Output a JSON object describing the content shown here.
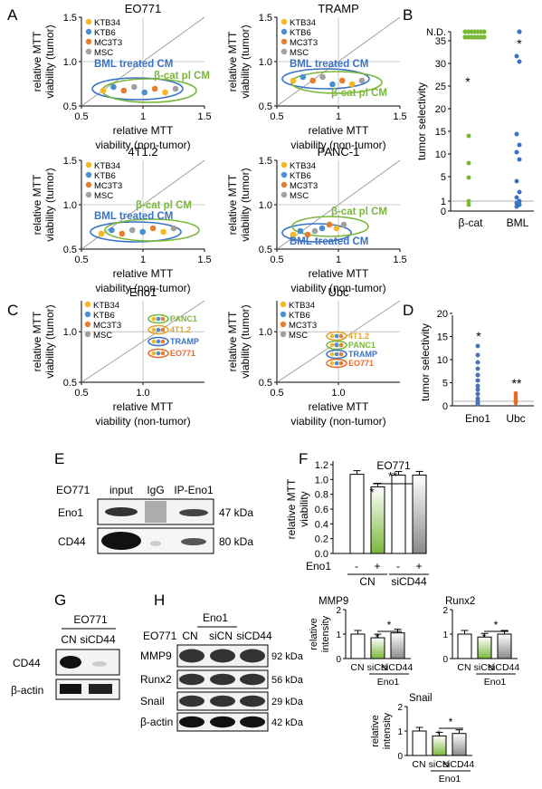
{
  "legend_abc": [
    "KTB34",
    "KTB6",
    "MC3T3",
    "MSC"
  ],
  "legend_colors": {
    "KTB34": "#f5b820",
    "KTB6": "#4a8fd0",
    "MC3T3": "#e57e2f",
    "MSC": "#a0a0a0"
  },
  "colors": {
    "blue": "#3a73c4",
    "green": "#7ab83a",
    "orange": "#e46b2a",
    "gold": "#e0a52a",
    "gray": "#888888"
  },
  "panel_letters": [
    "A",
    "B",
    "C",
    "D",
    "E",
    "F",
    "G",
    "H"
  ],
  "axis_common": {
    "ylabel": [
      "relative MTT",
      "viability (tumor)"
    ],
    "xlabel": [
      "relative MTT",
      "viability (non-tumor)"
    ]
  },
  "panel_a": {
    "cm_blue": "BML treated CM",
    "cm_green": "β-cat pl CM",
    "plots": [
      {
        "title": "EO771",
        "xticks": [
          "0.5",
          "1",
          "1.5"
        ],
        "yticks": [
          "0.5",
          "1.0",
          "1.5"
        ]
      },
      {
        "title": "TRAMP",
        "xticks": [
          "0.5",
          "1",
          "1.5"
        ],
        "yticks": [
          "0.5",
          "1.0",
          "1.5"
        ]
      },
      {
        "title": "4T1.2",
        "xticks": [
          "0.5",
          "1",
          "1.5"
        ],
        "yticks": [
          "0.5",
          "1.0",
          "1.5"
        ]
      },
      {
        "title": "PANC-1",
        "xticks": [
          "0.5",
          "1",
          "1.5"
        ],
        "yticks": [
          "0.5",
          "1.0",
          "1.5"
        ]
      }
    ]
  },
  "panel_b": {
    "ylabel": "tumor selectivity",
    "yticks": [
      "N.D.",
      "35",
      "30",
      "25",
      "20",
      "15",
      "10",
      "5",
      "1",
      "0"
    ],
    "categories": [
      "β-cat",
      "BML"
    ],
    "star": "*"
  },
  "panel_c": {
    "plots": [
      {
        "title": "Eno1",
        "xticks": [
          "0.5",
          "1.0"
        ],
        "yticks": [
          "0.5",
          "1.0"
        ],
        "labels": [
          "PANC1",
          "4T1.2",
          "TRAMP",
          "EO771"
        ]
      },
      {
        "title": "Ubc",
        "xticks": [
          "0.5",
          "1.0"
        ],
        "yticks": [
          "0.5",
          "1.0"
        ],
        "labels": [
          "4T1.2",
          "PANC1",
          "TRAMP",
          "EO771"
        ]
      }
    ]
  },
  "panel_d": {
    "ylabel": "tumor selectivity",
    "yticks": [
      "0",
      "5",
      "10",
      "15",
      "20"
    ],
    "categories": [
      "Eno1",
      "Ubc"
    ],
    "stars": [
      "*",
      "**"
    ]
  },
  "panel_e": {
    "cell": "EO771",
    "lanes": [
      "input",
      "IgG",
      "IP-Eno1"
    ],
    "rows": [
      {
        "name": "Eno1",
        "kda": "47 kDa"
      },
      {
        "name": "CD44",
        "kda": "80 kDa"
      }
    ]
  },
  "panel_f": {
    "title": "EO771",
    "ylabel": [
      "relative MTT",
      "viability"
    ],
    "yticks": [
      "0.0",
      "0.2",
      "0.4",
      "0.6",
      "0.8",
      "1.0",
      "1.2"
    ],
    "eno1_label": "Eno1",
    "eno1_signs": [
      "-",
      "+",
      "-",
      "+"
    ],
    "groups": [
      "CN",
      "siCD44"
    ],
    "values": [
      1.07,
      0.9,
      1.06,
      1.06
    ],
    "stars": [
      "*",
      "**"
    ]
  },
  "panel_g": {
    "cell": "EO771",
    "lanes": [
      "CN",
      "siCD44"
    ],
    "rows": [
      "CD44",
      "β-actin"
    ]
  },
  "panel_h": {
    "cell": "EO771",
    "eno1_label": "Eno1",
    "lanes": [
      "CN",
      "siCN",
      "siCD44"
    ],
    "rows": [
      {
        "name": "MMP9",
        "kda": "92 kDa"
      },
      {
        "name": "Runx2",
        "kda": "56 kDa"
      },
      {
        "name": "Snail",
        "kda": "29 kDa"
      },
      {
        "name": "β-actin",
        "kda": "42 kDa"
      }
    ],
    "charts": [
      {
        "title": "MMP9",
        "values": [
          1.0,
          0.85,
          1.05
        ]
      },
      {
        "title": "Runx2",
        "values": [
          1.0,
          0.88,
          1.0
        ]
      },
      {
        "title": "Snail",
        "values": [
          1.0,
          0.8,
          0.9
        ]
      }
    ],
    "ylabel": [
      "relative",
      "intensity"
    ],
    "yticks": [
      "0",
      "1",
      "2"
    ],
    "xcats": [
      "CN",
      "siCN",
      "siCD44"
    ],
    "star": "*"
  },
  "chart_data": [
    {
      "type": "bar",
      "title": "EO771",
      "categories": [
        "CN Eno1-",
        "CN Eno1+",
        "siCD44 Eno1-",
        "siCD44 Eno1+"
      ],
      "values": [
        1.07,
        0.9,
        1.06,
        1.06
      ],
      "ylim": [
        0,
        1.2
      ]
    },
    {
      "type": "bar",
      "title": "MMP9",
      "categories": [
        "CN",
        "siCN",
        "siCD44"
      ],
      "values": [
        1.0,
        0.85,
        1.05
      ],
      "ylim": [
        0,
        2
      ]
    },
    {
      "type": "bar",
      "title": "Runx2",
      "categories": [
        "CN",
        "siCN",
        "siCD44"
      ],
      "values": [
        1.0,
        0.88,
        1.0
      ],
      "ylim": [
        0,
        2
      ]
    },
    {
      "type": "bar",
      "title": "Snail",
      "categories": [
        "CN",
        "siCN",
        "siCD44"
      ],
      "values": [
        1.0,
        0.8,
        0.9
      ],
      "ylim": [
        0,
        2
      ]
    }
  ]
}
